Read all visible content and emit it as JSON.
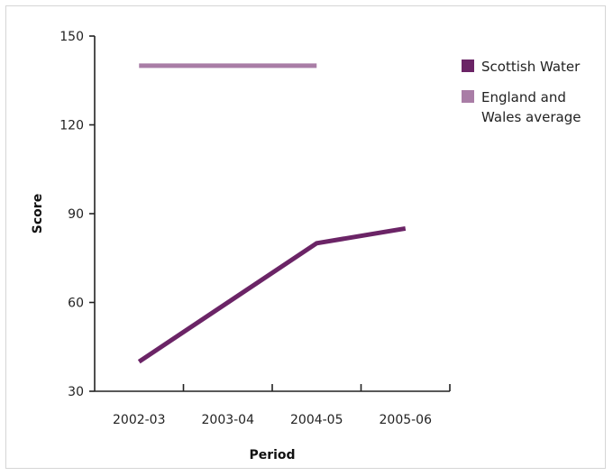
{
  "chart_data": {
    "type": "line",
    "title": "",
    "xlabel": "Period",
    "ylabel": "Score",
    "categories": [
      "2002-03",
      "2003-04",
      "2004-05",
      "2005-06"
    ],
    "ylim": [
      30,
      150
    ],
    "yticks": [
      30,
      60,
      90,
      120,
      150
    ],
    "grid": false,
    "legend_position": "right",
    "series": [
      {
        "name": "Scottish Water",
        "color": "#6b2466",
        "values": [
          40,
          60,
          80,
          85
        ]
      },
      {
        "name": "England and Wales average",
        "legend_lines": [
          "England and",
          "Wales average"
        ],
        "color": "#a97da6",
        "values": [
          140,
          140,
          140,
          null
        ]
      }
    ]
  }
}
